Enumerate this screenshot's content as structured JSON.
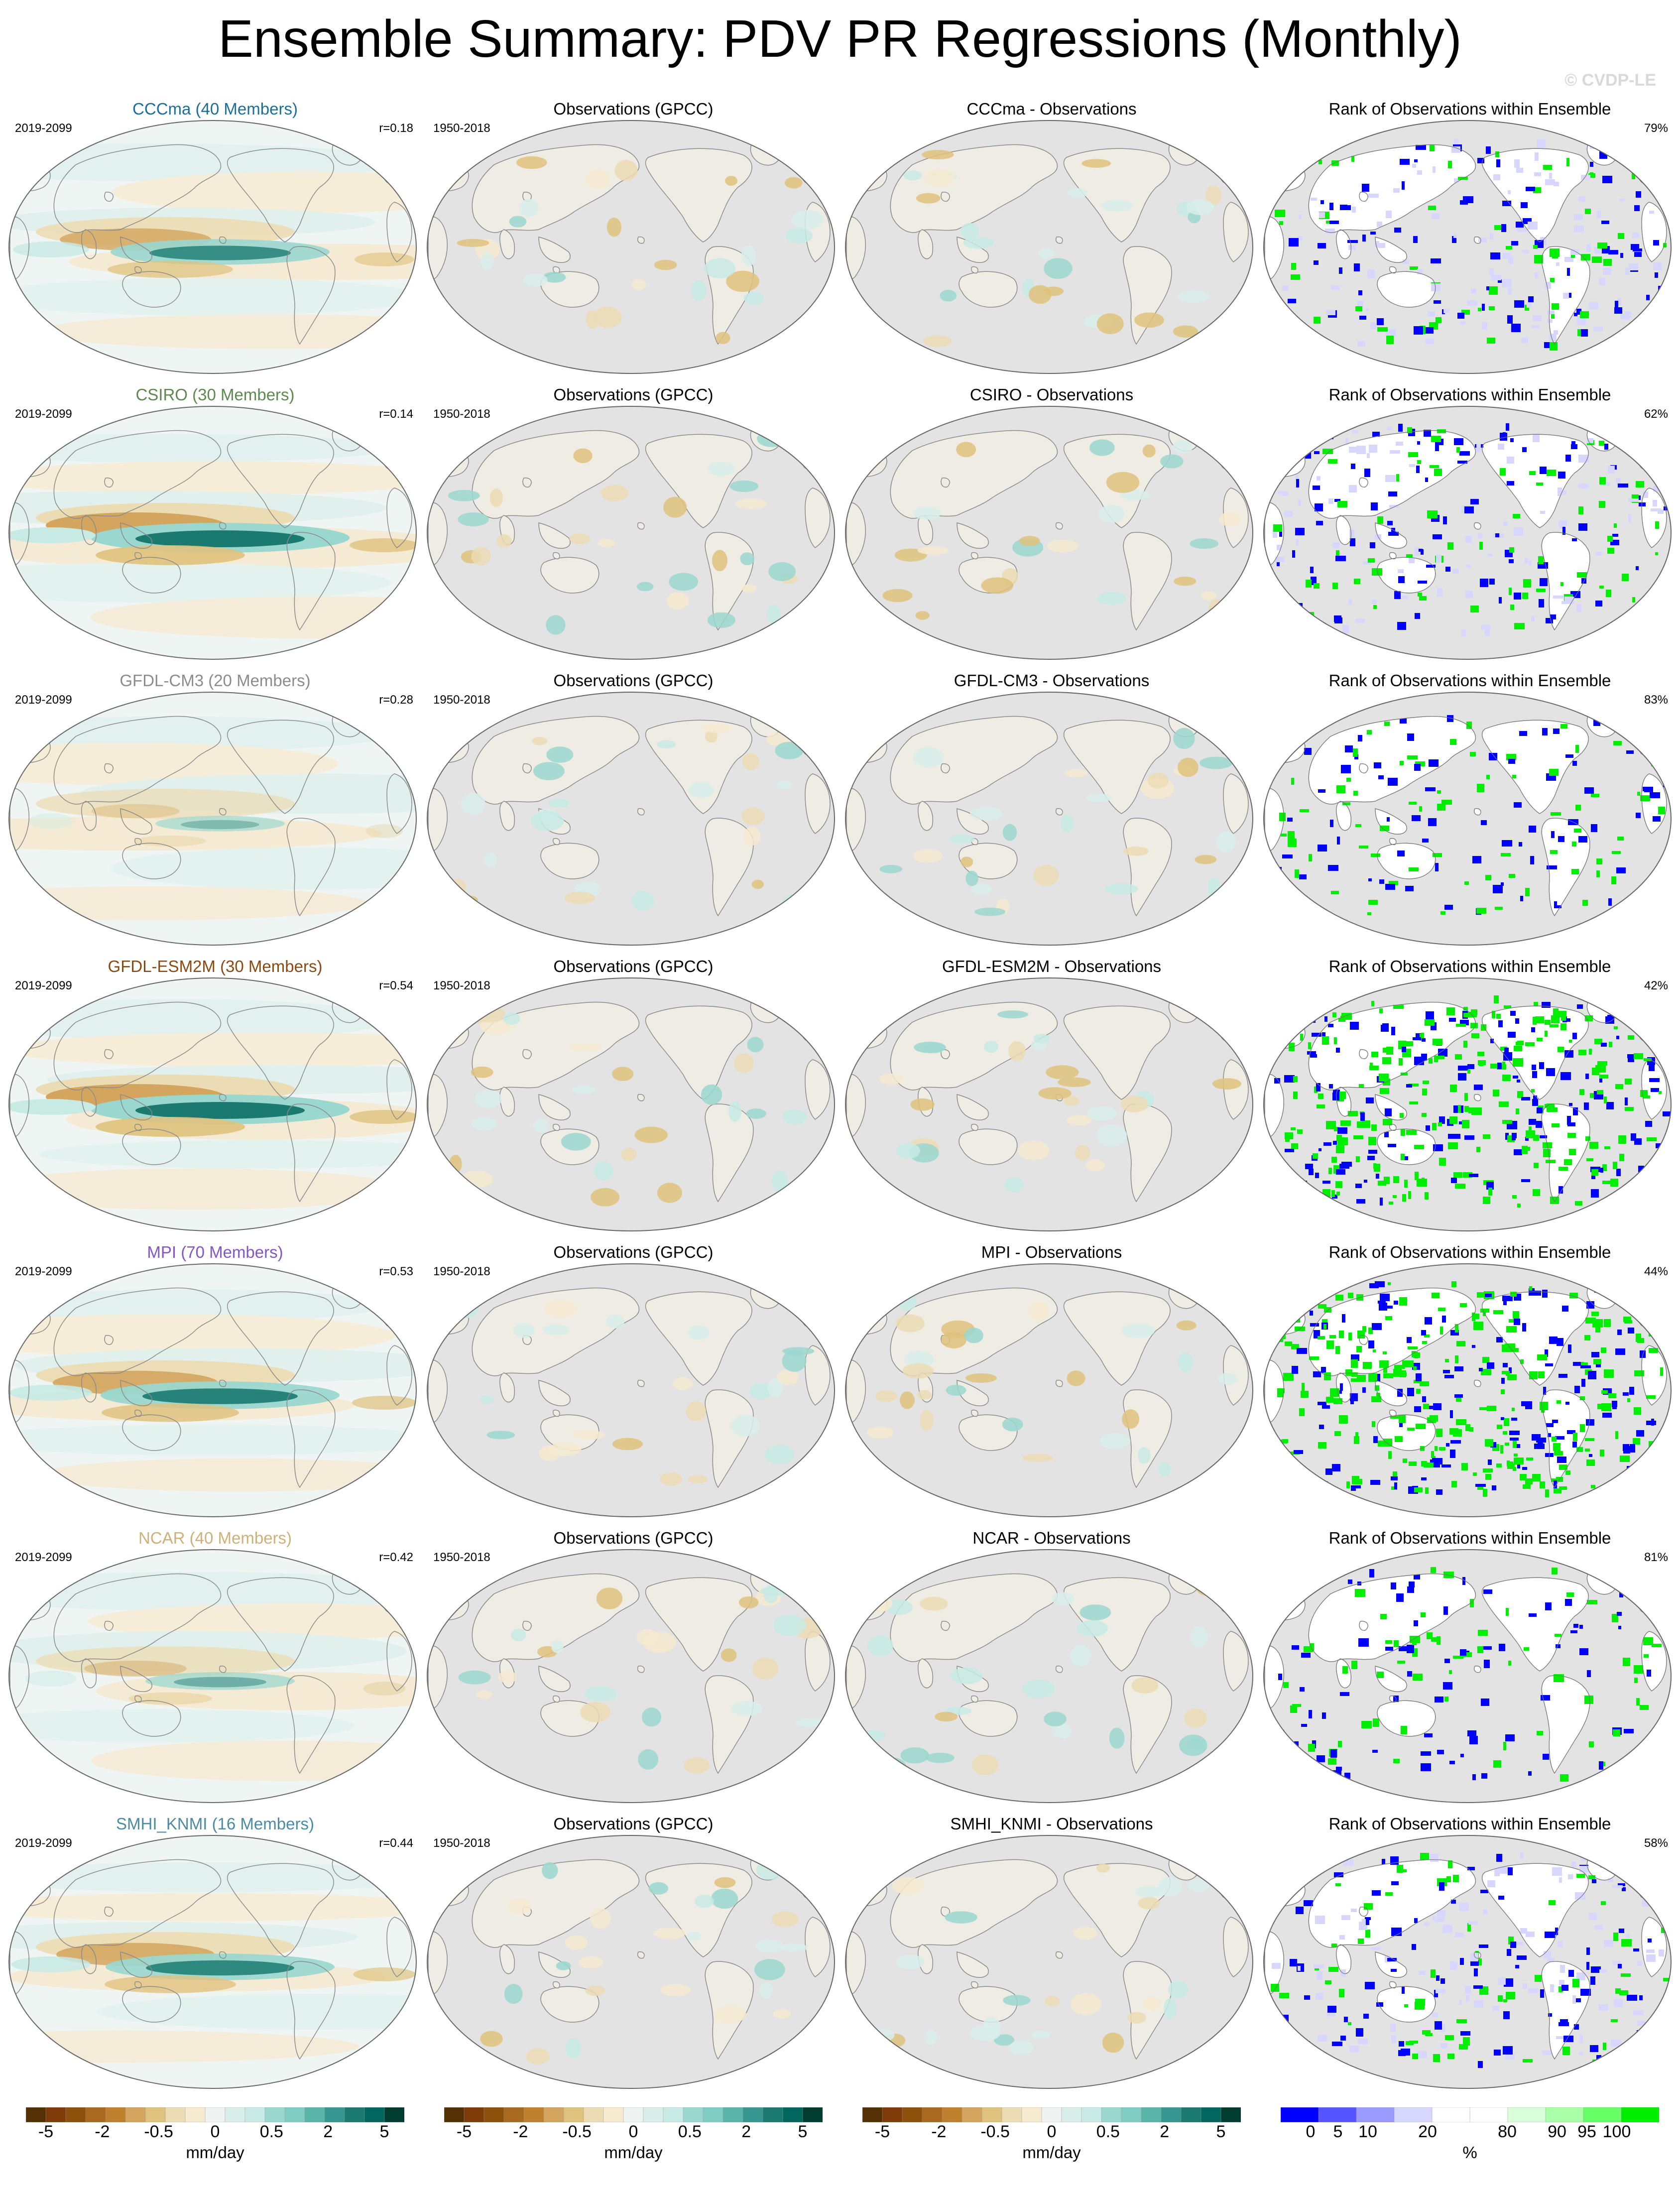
{
  "title": "Ensemble Summary: PDV PR Regressions (Monthly)",
  "copyright": "© CVDP-LE",
  "colors": {
    "CCCma": "#1b6f99",
    "CSIRO": "#5c8a4f",
    "GFDL-CM3": "#8c8c8c",
    "GFDL-ESM2M": "#8b4a12",
    "MPI": "#8656c4",
    "NCAR": "#d0b07a",
    "SMHI_KNMI": "#4d8aa3",
    "land": "#e3e3e3",
    "ocean_neutral": "#eef5f2",
    "wet": "#3a9b8c",
    "dry": "#c89a50",
    "rank_low": "#0000ee",
    "rank_high": "#11ee11",
    "rank_mid": "#ffffff"
  },
  "rows": [
    {
      "model": "CCCma",
      "model_title": "CCCma (40 Members)",
      "period": "2019-2099",
      "r": "r=0.18",
      "obs_title": "Observations (GPCC)",
      "obs_period": "1950-2018",
      "diff_title": "CCCma - Observations",
      "rank_title": "Rank of Observations within Ensemble",
      "rank_pct": "79%",
      "rank_pattern": "mixed"
    },
    {
      "model": "CSIRO",
      "model_title": "CSIRO (30 Members)",
      "period": "2019-2099",
      "r": "r=0.14",
      "obs_title": "Observations (GPCC)",
      "obs_period": "1950-2018",
      "diff_title": "CSIRO - Observations",
      "rank_title": "Rank of Observations within Ensemble",
      "rank_pct": "62%",
      "rank_pattern": "mixed"
    },
    {
      "model": "GFDL-CM3",
      "model_title": "GFDL-CM3 (20 Members)",
      "period": "2019-2099",
      "r": "r=0.28",
      "obs_title": "Observations (GPCC)",
      "obs_period": "1950-2018",
      "diff_title": "GFDL-CM3 - Observations",
      "rank_title": "Rank of Observations within Ensemble",
      "rank_pct": "83%",
      "rank_pattern": "sparse"
    },
    {
      "model": "GFDL-ESM2M",
      "model_title": "GFDL-ESM2M (30 Members)",
      "period": "2019-2099",
      "r": "r=0.54",
      "obs_title": "Observations (GPCC)",
      "obs_period": "1950-2018",
      "diff_title": "GFDL-ESM2M - Observations",
      "rank_title": "Rank of Observations within Ensemble",
      "rank_pct": "42%",
      "rank_pattern": "dense"
    },
    {
      "model": "MPI",
      "model_title": "MPI (70 Members)",
      "period": "2019-2099",
      "r": "r=0.53",
      "obs_title": "Observations (GPCC)",
      "obs_period": "1950-2018",
      "diff_title": "MPI - Observations",
      "rank_title": "Rank of Observations within Ensemble",
      "rank_pct": "44%",
      "rank_pattern": "dense"
    },
    {
      "model": "NCAR",
      "model_title": "NCAR (40 Members)",
      "period": "2019-2099",
      "r": "r=0.42",
      "obs_title": "Observations (GPCC)",
      "obs_period": "1950-2018",
      "diff_title": "NCAR - Observations",
      "rank_title": "Rank of Observations within Ensemble",
      "rank_pct": "81%",
      "rank_pattern": "sparse"
    },
    {
      "model": "SMHI_KNMI",
      "model_title": "SMHI_KNMI (16 Members)",
      "period": "2019-2099",
      "r": "r=0.44",
      "obs_title": "Observations (GPCC)",
      "obs_period": "1950-2018",
      "diff_title": "SMHI_KNMI - Observations",
      "rank_title": "Rank of Observations within Ensemble",
      "rank_pct": "58%",
      "rank_pattern": "mixed"
    }
  ],
  "colorbars": [
    {
      "unit": "mm/day",
      "ticks": [
        "-5",
        "-2",
        "-0.5",
        "0",
        "0.5",
        "2",
        "5"
      ]
    },
    {
      "unit": "mm/day",
      "ticks": [
        "-5",
        "-2",
        "-0.5",
        "0",
        "0.5",
        "2",
        "5"
      ]
    },
    {
      "unit": "mm/day",
      "ticks": [
        "-5",
        "-2",
        "-0.5",
        "0",
        "0.5",
        "2",
        "5"
      ]
    },
    {
      "unit": "%",
      "ticks": [
        "0",
        "5",
        "10",
        "20",
        "80",
        "90",
        "95",
        "100"
      ]
    }
  ],
  "diverging_colors": [
    "#543005",
    "#7f3b08",
    "#8c510a",
    "#a86a1f",
    "#bf812d",
    "#d3a55e",
    "#dfc27d",
    "#ecdcb4",
    "#f6ead0",
    "#eef3f1",
    "#d8eeeb",
    "#c7eae5",
    "#9ad7cf",
    "#80cdc1",
    "#5ab4a8",
    "#35978f",
    "#1a7a70",
    "#01665e",
    "#003c30"
  ],
  "rank_colors": [
    "#0000ff",
    "#5555ff",
    "#9a9aff",
    "#d6d6ff",
    "#ffffff",
    "#ffffff",
    "#d8ffd8",
    "#a8ffa8",
    "#66ff66",
    "#00ee00"
  ]
}
